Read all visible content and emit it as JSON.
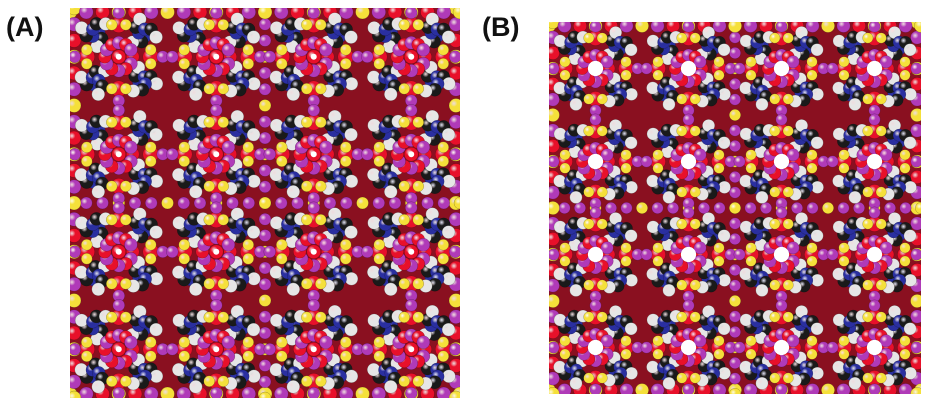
{
  "figure": {
    "panels": [
      {
        "label": "(A)",
        "description_colors": [
          "#e8102a",
          "#b03ab8",
          "#f5e03a",
          "#2a2fa0",
          "#1a1a1a",
          "#e6e6e6"
        ],
        "pores_filled": true
      },
      {
        "label": "(B)",
        "description_colors": [
          "#e8102a",
          "#b03ab8",
          "#f5e03a",
          "#2a2fa0",
          "#1a1a1a",
          "#e6e6e6"
        ],
        "pores_filled": false
      }
    ]
  }
}
